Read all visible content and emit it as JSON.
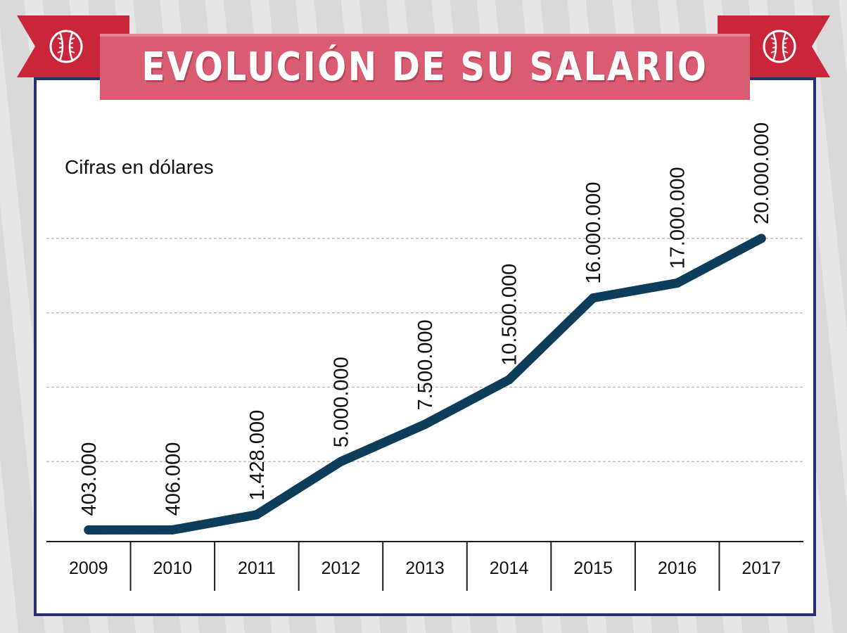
{
  "colors": {
    "background": "#d9d9d9",
    "card_border": "#2b3073",
    "ribbon": "#c9263b",
    "banner": "#da5c72",
    "line": "#0d3d58",
    "grid": "#b4b4b4"
  },
  "icons": {
    "left": "baseball-icon",
    "right": "baseball-icon"
  },
  "title": "EVOLUCIÓN DE SU SALARIO",
  "subtitle": "Cifras en dólares",
  "chart_data": {
    "type": "line",
    "title": "EVOLUCIÓN DE SU SALARIO",
    "ylabel": "Cifras en dólares",
    "xlabel": "",
    "categories": [
      "2009",
      "2010",
      "2011",
      "2012",
      "2013",
      "2014",
      "2015",
      "2016",
      "2017"
    ],
    "values": [
      403000,
      406000,
      1428000,
      5000000,
      7500000,
      10500000,
      16000000,
      17000000,
      20000000
    ],
    "value_labels": [
      "403.000",
      "406.000",
      "1.428.000",
      "5.000.000",
      "7.500.000",
      "10.500.000",
      "16.000.000",
      "17.000.000",
      "20.000.000"
    ],
    "ylim": [
      0,
      20000000
    ],
    "grid": true,
    "legend": "none"
  }
}
